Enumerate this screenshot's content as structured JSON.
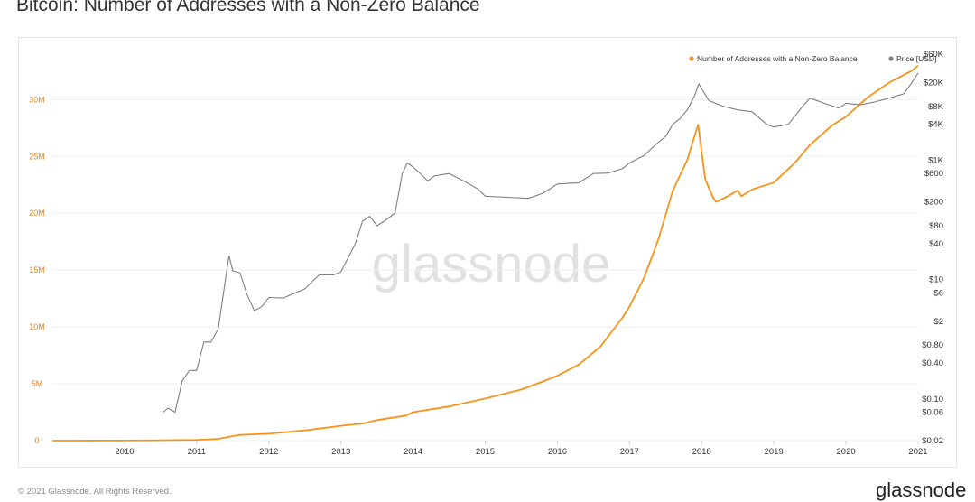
{
  "chart_data": {
    "type": "line",
    "title": "Bitcoin: Number of Addresses with a Non-Zero Balance",
    "watermark": "glassnode",
    "legend": [
      {
        "name": "Number of Addresses with a Non-Zero Balance",
        "color": "#f7931a"
      },
      {
        "name": "Price [USD]",
        "color": "#7f7f7f"
      }
    ],
    "x_ticks": [
      "2010",
      "2011",
      "2012",
      "2013",
      "2014",
      "2015",
      "2016",
      "2017",
      "2018",
      "2019",
      "2020",
      "2021"
    ],
    "xlim": [
      2009.0,
      2021.0
    ],
    "y_left": {
      "ticks": [
        0,
        5000000,
        10000000,
        15000000,
        20000000,
        25000000,
        30000000
      ],
      "tick_labels": [
        "0",
        "5M",
        "10M",
        "15M",
        "20M",
        "25M",
        "30M"
      ],
      "ylim": [
        0,
        34000000
      ]
    },
    "y_right": {
      "scale": "log",
      "ticks": [
        60000,
        20000,
        8000,
        4000,
        1000,
        600,
        200,
        80,
        40,
        10,
        6,
        2,
        0.8,
        0.4,
        0.1,
        0.06,
        0.02
      ],
      "tick_labels": [
        "$60K",
        "$20K",
        "$8K",
        "$4K",
        "$1K",
        "$600",
        "$200",
        "$80",
        "$40",
        "$10",
        "$6",
        "$2",
        "$0.80",
        "$0.40",
        "$0.10",
        "$0.06",
        "$0.02"
      ],
      "ylim": [
        0.02,
        60000
      ]
    },
    "series": [
      {
        "name": "Number of Addresses with a Non-Zero Balance",
        "axis": "left",
        "color": "#f7931a",
        "x": [
          2009.0,
          2010.0,
          2010.5,
          2011.0,
          2011.3,
          2011.5,
          2011.6,
          2012.0,
          2012.5,
          2013.0,
          2013.3,
          2013.5,
          2013.9,
          2014.0,
          2014.5,
          2015.0,
          2015.5,
          2015.8,
          2016.0,
          2016.3,
          2016.6,
          2016.9,
          2017.0,
          2017.2,
          2017.4,
          2017.6,
          2017.8,
          2017.95,
          2018.05,
          2018.15,
          2018.2,
          2018.3,
          2018.5,
          2018.55,
          2018.7,
          2019.0,
          2019.3,
          2019.5,
          2019.8,
          2020.0,
          2020.3,
          2020.6,
          2020.9,
          2021.0
        ],
        "values": [
          0,
          10000,
          30000,
          70000,
          150000,
          400000,
          500000,
          600000,
          900000,
          1300000,
          1500000,
          1800000,
          2200000,
          2500000,
          3000000,
          3700000,
          4500000,
          5200000,
          5700000,
          6700000,
          8300000,
          10800000,
          11800000,
          14300000,
          17700000,
          22000000,
          24700000,
          27800000,
          23000000,
          21500000,
          21000000,
          21300000,
          22000000,
          21500000,
          22100000,
          22700000,
          24500000,
          26000000,
          27700000,
          28500000,
          30200000,
          31500000,
          32500000,
          33000000
        ]
      },
      {
        "name": "Price [USD]",
        "axis": "right",
        "color": "#7f7f7f",
        "x": [
          2010.54,
          2010.6,
          2010.7,
          2010.8,
          2010.9,
          2011.0,
          2011.1,
          2011.2,
          2011.3,
          2011.42,
          2011.45,
          2011.5,
          2011.6,
          2011.7,
          2011.8,
          2011.9,
          2012.0,
          2012.2,
          2012.5,
          2012.7,
          2012.9,
          2013.0,
          2013.2,
          2013.3,
          2013.4,
          2013.5,
          2013.6,
          2013.75,
          2013.85,
          2013.92,
          2014.0,
          2014.1,
          2014.2,
          2014.3,
          2014.5,
          2014.7,
          2014.9,
          2015.0,
          2015.3,
          2015.6,
          2015.8,
          2016.0,
          2016.3,
          2016.5,
          2016.7,
          2016.9,
          2017.0,
          2017.2,
          2017.4,
          2017.5,
          2017.6,
          2017.7,
          2017.8,
          2017.9,
          2017.96,
          2018.1,
          2018.3,
          2018.5,
          2018.7,
          2018.9,
          2019.0,
          2019.2,
          2019.4,
          2019.5,
          2019.7,
          2019.9,
          2020.0,
          2020.2,
          2020.4,
          2020.6,
          2020.8,
          2020.9,
          2021.0
        ],
        "values": [
          0.06,
          0.07,
          0.06,
          0.2,
          0.3,
          0.3,
          0.9,
          0.9,
          1.5,
          15,
          25,
          14,
          13,
          5.5,
          3.0,
          3.5,
          5,
          4.9,
          7,
          12,
          12,
          13.5,
          40,
          95,
          115,
          80,
          95,
          130,
          600,
          900,
          770,
          600,
          450,
          550,
          600,
          450,
          330,
          250,
          240,
          230,
          280,
          400,
          420,
          600,
          610,
          720,
          900,
          1200,
          2000,
          2500,
          4000,
          5000,
          7000,
          12000,
          19000,
          10000,
          8000,
          7000,
          6500,
          4000,
          3600,
          4000,
          8000,
          11000,
          9000,
          7500,
          9000,
          8500,
          9500,
          11000,
          13000,
          19000,
          29000
        ]
      }
    ]
  },
  "footer": {
    "copyright": "© 2021 Glassnode. All Rights Reserved.",
    "brand": "glassnode"
  }
}
